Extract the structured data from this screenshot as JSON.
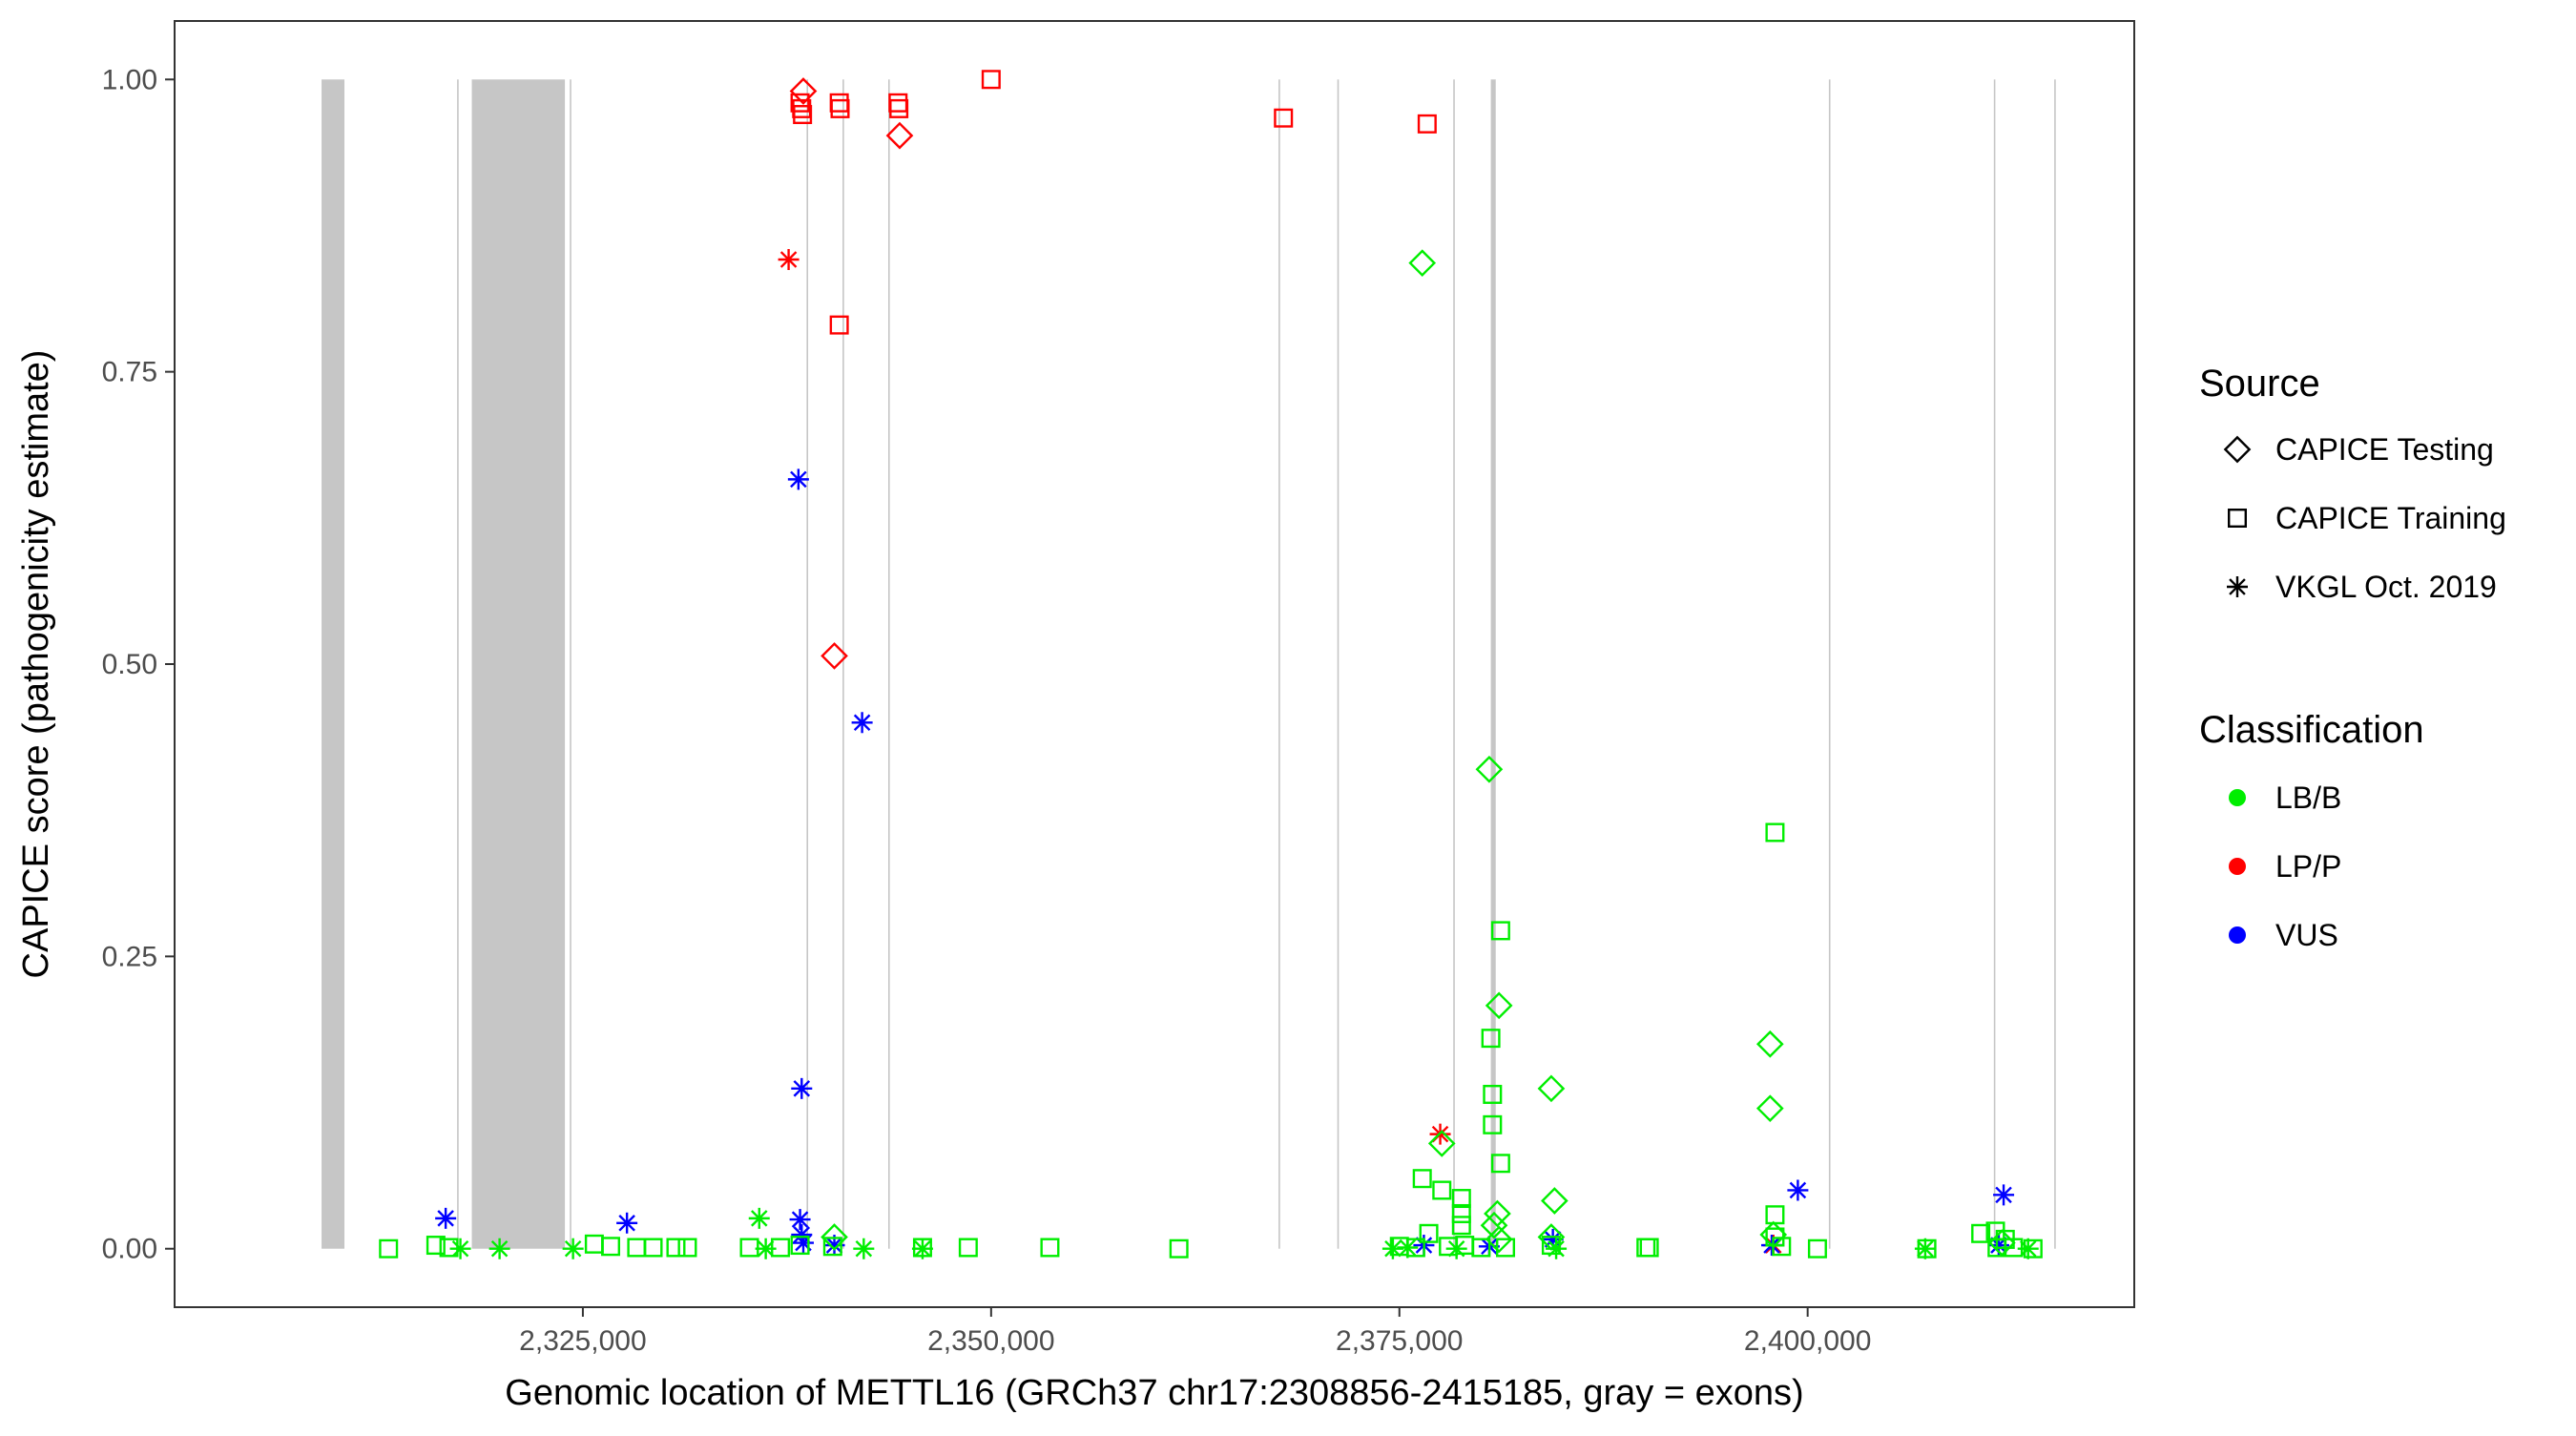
{
  "chart_data": {
    "type": "scatter",
    "xlabel": "Genomic location of METTL16 (GRCh37 chr17:2308856-2415185, gray = exons)",
    "ylabel": "CAPICE score (pathogenicity estimate)",
    "xlim": [
      2300000,
      2420000
    ],
    "ylim": [
      -0.05,
      1.05
    ],
    "x_ticks": [
      2325000,
      2350000,
      2375000,
      2400000
    ],
    "x_tick_labels": [
      "2,325,000",
      "2,350,000",
      "2,375,000",
      "2,400,000"
    ],
    "y_ticks": [
      0,
      0.25,
      0.5,
      0.75,
      1.0
    ],
    "y_tick_labels": [
      "0.00",
      "0.25",
      "0.50",
      "0.75",
      "1.00"
    ],
    "grid": false,
    "exons": [
      [
        2309000,
        2310400
      ],
      [
        2317300,
        2317380
      ],
      [
        2318200,
        2323900
      ],
      [
        2324200,
        2324280
      ],
      [
        2338700,
        2338780
      ],
      [
        2340900,
        2340980
      ],
      [
        2343700,
        2343780
      ],
      [
        2367600,
        2367680
      ],
      [
        2371200,
        2371280
      ],
      [
        2378300,
        2378380
      ],
      [
        2380600,
        2380900
      ],
      [
        2401300,
        2401380
      ],
      [
        2411400,
        2411480
      ],
      [
        2415100,
        2415185
      ]
    ],
    "legend_position": "right",
    "legend": {
      "source_title": "Source",
      "source_items": [
        {
          "label": "CAPICE Testing",
          "shape": "diamond"
        },
        {
          "label": "CAPICE Training",
          "shape": "square"
        },
        {
          "label": "VKGL Oct. 2019",
          "shape": "asterisk"
        }
      ],
      "class_title": "Classification",
      "class_items": [
        {
          "label": "LB/B",
          "color": "#00ee00"
        },
        {
          "label": "LP/P",
          "color": "#ff0000"
        },
        {
          "label": "VUS",
          "color": "#0000ff"
        }
      ]
    },
    "series": [
      {
        "source": "CAPICE Training",
        "classification": "LP/P",
        "points": [
          [
            2338300,
            0.98
          ],
          [
            2338400,
            0.975
          ],
          [
            2338450,
            0.97
          ],
          [
            2340700,
            0.98
          ],
          [
            2340750,
            0.975
          ],
          [
            2344300,
            0.98
          ],
          [
            2344350,
            0.975
          ],
          [
            2350000,
            1.0
          ],
          [
            2367900,
            0.967
          ],
          [
            2376700,
            0.962
          ],
          [
            2340700,
            0.79
          ]
        ]
      },
      {
        "source": "CAPICE Testing",
        "classification": "LP/P",
        "points": [
          [
            2338500,
            0.99
          ],
          [
            2344400,
            0.952
          ],
          [
            2340400,
            0.507
          ]
        ]
      },
      {
        "source": "VKGL Oct. 2019",
        "classification": "LP/P",
        "points": [
          [
            2337600,
            0.846
          ],
          [
            2377500,
            0.098
          ],
          [
            2397900,
            0.003
          ]
        ]
      },
      {
        "source": "VKGL Oct. 2019",
        "classification": "VUS",
        "points": [
          [
            2338200,
            0.658
          ],
          [
            2342100,
            0.45
          ],
          [
            2338400,
            0.137
          ],
          [
            2316600,
            0.026
          ],
          [
            2327700,
            0.022
          ],
          [
            2338300,
            0.025
          ],
          [
            2338400,
            0.012
          ],
          [
            2338500,
            0.005
          ],
          [
            2340400,
            0.003
          ],
          [
            2376500,
            0.003
          ],
          [
            2380500,
            0.002
          ],
          [
            2384400,
            0.008
          ],
          [
            2397800,
            0.003
          ],
          [
            2399400,
            0.05
          ],
          [
            2412000,
            0.046
          ],
          [
            2411700,
            0.003
          ]
        ]
      },
      {
        "source": "CAPICE Testing",
        "classification": "LB/B",
        "points": [
          [
            2376400,
            0.843
          ],
          [
            2380500,
            0.41
          ],
          [
            2381100,
            0.208
          ],
          [
            2384300,
            0.137
          ],
          [
            2397700,
            0.175
          ],
          [
            2397700,
            0.12
          ],
          [
            2377600,
            0.09
          ],
          [
            2384500,
            0.041
          ],
          [
            2381000,
            0.03
          ],
          [
            2380800,
            0.02
          ],
          [
            2384300,
            0.01
          ],
          [
            2397900,
            0.012
          ],
          [
            2340400,
            0.01
          ],
          [
            2411900,
            0.005
          ],
          [
            2381100,
            0.008
          ]
        ]
      },
      {
        "source": "CAPICE Training",
        "classification": "LB/B",
        "points": [
          [
            2398000,
            0.356
          ],
          [
            2381200,
            0.272
          ],
          [
            2380600,
            0.18
          ],
          [
            2380700,
            0.132
          ],
          [
            2380700,
            0.106
          ],
          [
            2381200,
            0.073
          ],
          [
            2376400,
            0.06
          ],
          [
            2377600,
            0.05
          ],
          [
            2378800,
            0.043
          ],
          [
            2378800,
            0.03
          ],
          [
            2398000,
            0.029
          ],
          [
            2378800,
            0.02
          ],
          [
            2411500,
            0.015
          ],
          [
            2410600,
            0.013
          ],
          [
            2376800,
            0.013
          ],
          [
            2398000,
            0.01
          ],
          [
            2412100,
            0.008
          ],
          [
            2313100,
            0.0
          ],
          [
            2316000,
            0.003
          ],
          [
            2316800,
            0.001
          ],
          [
            2325700,
            0.004
          ],
          [
            2326700,
            0.002
          ],
          [
            2328300,
            0.001
          ],
          [
            2329300,
            0.001
          ],
          [
            2330700,
            0.001
          ],
          [
            2331400,
            0.001
          ],
          [
            2335200,
            0.001
          ],
          [
            2337100,
            0.001
          ],
          [
            2338300,
            0.003
          ],
          [
            2340300,
            0.002
          ],
          [
            2345800,
            0.001
          ],
          [
            2348600,
            0.001
          ],
          [
            2353600,
            0.001
          ],
          [
            2361500,
            0.0
          ],
          [
            2375000,
            0.002
          ],
          [
            2376000,
            0.001
          ],
          [
            2378000,
            0.002
          ],
          [
            2379000,
            0.003
          ],
          [
            2380000,
            0.001
          ],
          [
            2381500,
            0.001
          ],
          [
            2384300,
            0.003
          ],
          [
            2390100,
            0.001
          ],
          [
            2390300,
            0.001
          ],
          [
            2398400,
            0.002
          ],
          [
            2400600,
            0.0
          ],
          [
            2407300,
            0.0
          ],
          [
            2411600,
            0.001
          ],
          [
            2412600,
            0.001
          ],
          [
            2413800,
            0.0
          ]
        ]
      },
      {
        "source": "VKGL Oct. 2019",
        "classification": "LB/B",
        "points": [
          [
            2317500,
            0.0
          ],
          [
            2319900,
            0.0
          ],
          [
            2324400,
            0.0
          ],
          [
            2335800,
            0.026
          ],
          [
            2336200,
            0.0
          ],
          [
            2342200,
            0.0
          ],
          [
            2345800,
            0.0
          ],
          [
            2374600,
            0.0
          ],
          [
            2375500,
            0.001
          ],
          [
            2378500,
            0.0
          ],
          [
            2384600,
            0.0
          ],
          [
            2407200,
            0.0
          ],
          [
            2413500,
            0.0
          ]
        ]
      }
    ]
  }
}
